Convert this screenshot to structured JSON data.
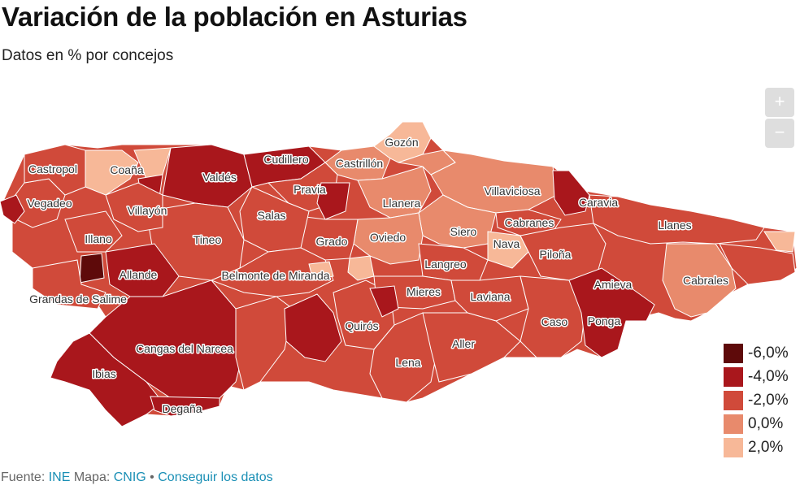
{
  "title": "Variación de la población en Asturias",
  "subtitle": "Datos en % por concejos",
  "zoom": {
    "in_label": "+",
    "out_label": "−"
  },
  "colors": {
    "c0": "#5e0a0a",
    "c1": "#a9171c",
    "c2": "#d04a3a",
    "c3": "#e88a6c",
    "c4": "#f7b898",
    "border": "#ffffff"
  },
  "legend": [
    {
      "label": "-6,0%",
      "color": "#5e0a0a"
    },
    {
      "label": "-4,0%",
      "color": "#a9171c"
    },
    {
      "label": "-2,0%",
      "color": "#d04a3a"
    },
    {
      "label": "0,0%",
      "color": "#e88a6c"
    },
    {
      "label": "2,0%",
      "color": "#f7b898"
    }
  ],
  "municipalities": [
    {
      "name": "Gozón",
      "class": "c4"
    },
    {
      "name": "Castropol",
      "class": "c2"
    },
    {
      "name": "Coaña",
      "class": "c4"
    },
    {
      "name": "Cudillero",
      "class": "c1"
    },
    {
      "name": "Castrillón",
      "class": "c3"
    },
    {
      "name": "Valdés",
      "class": "c2"
    },
    {
      "name": "Pravia",
      "class": "c2"
    },
    {
      "name": "Llanera",
      "class": "c3"
    },
    {
      "name": "Villaviciosa",
      "class": "c3"
    },
    {
      "name": "Caravia",
      "class": "c1"
    },
    {
      "name": "Vegadeo",
      "class": "c2"
    },
    {
      "name": "Villayón",
      "class": "c2"
    },
    {
      "name": "Salas",
      "class": "c2"
    },
    {
      "name": "Cabranes",
      "class": "c2"
    },
    {
      "name": "Llanes",
      "class": "c2"
    },
    {
      "name": "Siero",
      "class": "c3"
    },
    {
      "name": "Illano",
      "class": "c2"
    },
    {
      "name": "Tineo",
      "class": "c2"
    },
    {
      "name": "Grado",
      "class": "c2"
    },
    {
      "name": "Oviedo",
      "class": "c3"
    },
    {
      "name": "Nava",
      "class": "c4"
    },
    {
      "name": "Piloña",
      "class": "c2"
    },
    {
      "name": "Langreo",
      "class": "c2"
    },
    {
      "name": "Allande",
      "class": "c1"
    },
    {
      "name": "Belmonte de Miranda",
      "class": "c2"
    },
    {
      "name": "Cabrales",
      "class": "c3"
    },
    {
      "name": "Amieva",
      "class": "c1"
    },
    {
      "name": "Grandas de Salime",
      "class": "c2"
    },
    {
      "name": "Mieres",
      "class": "c2"
    },
    {
      "name": "Laviana",
      "class": "c2"
    },
    {
      "name": "Quirós",
      "class": "c1"
    },
    {
      "name": "Caso",
      "class": "c2"
    },
    {
      "name": "Ponga",
      "class": "c1"
    },
    {
      "name": "Cangas del Narcea",
      "class": "c1"
    },
    {
      "name": "Aller",
      "class": "c2"
    },
    {
      "name": "Lena",
      "class": "c2"
    },
    {
      "name": "Ibias",
      "class": "c1"
    },
    {
      "name": "Degaña",
      "class": "c1"
    }
  ],
  "footer": {
    "source_prefix": "Fuente: ",
    "source_link": "INE",
    "map_prefix": " Mapa: ",
    "map_link": "CNIG",
    "separator": " • ",
    "data_link": "Conseguir los datos"
  }
}
